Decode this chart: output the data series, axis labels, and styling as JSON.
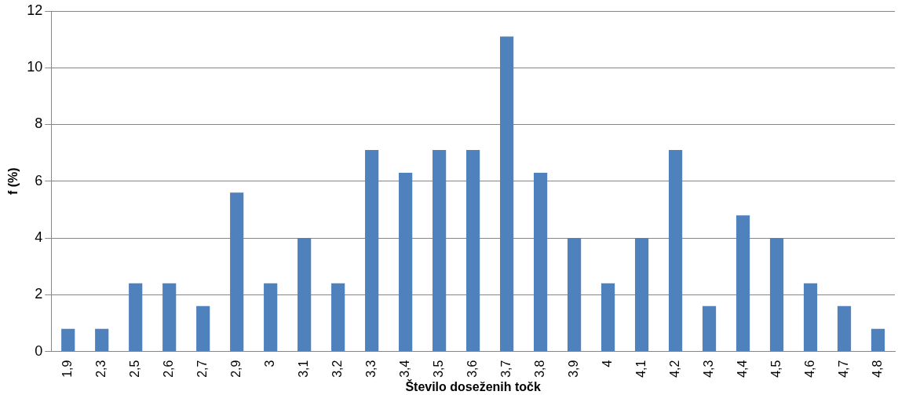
{
  "chart_data": {
    "type": "bar",
    "xlabel": "Število doseženih točk",
    "ylabel": "f (%)",
    "categories": [
      "1,9",
      "2,3",
      "2,5",
      "2,6",
      "2,7",
      "2,9",
      "3",
      "3,1",
      "3,2",
      "3,3",
      "3,4",
      "3,5",
      "3,6",
      "3,7",
      "3,8",
      "3,9",
      "4",
      "4,1",
      "4,2",
      "4,3",
      "4,4",
      "4,5",
      "4,6",
      "4,7",
      "4,8"
    ],
    "values": [
      0.8,
      0.8,
      2.4,
      2.4,
      1.6,
      5.6,
      2.4,
      4.0,
      2.4,
      7.1,
      6.3,
      7.1,
      7.1,
      11.1,
      6.3,
      4.0,
      2.4,
      4.0,
      7.1,
      1.6,
      4.8,
      4.0,
      2.4,
      1.6,
      0.8
    ],
    "color": "#4f81bd",
    "ylim": [
      0,
      12
    ],
    "yticks": [
      0,
      2,
      4,
      6,
      8,
      10,
      12
    ],
    "grid": "y"
  }
}
